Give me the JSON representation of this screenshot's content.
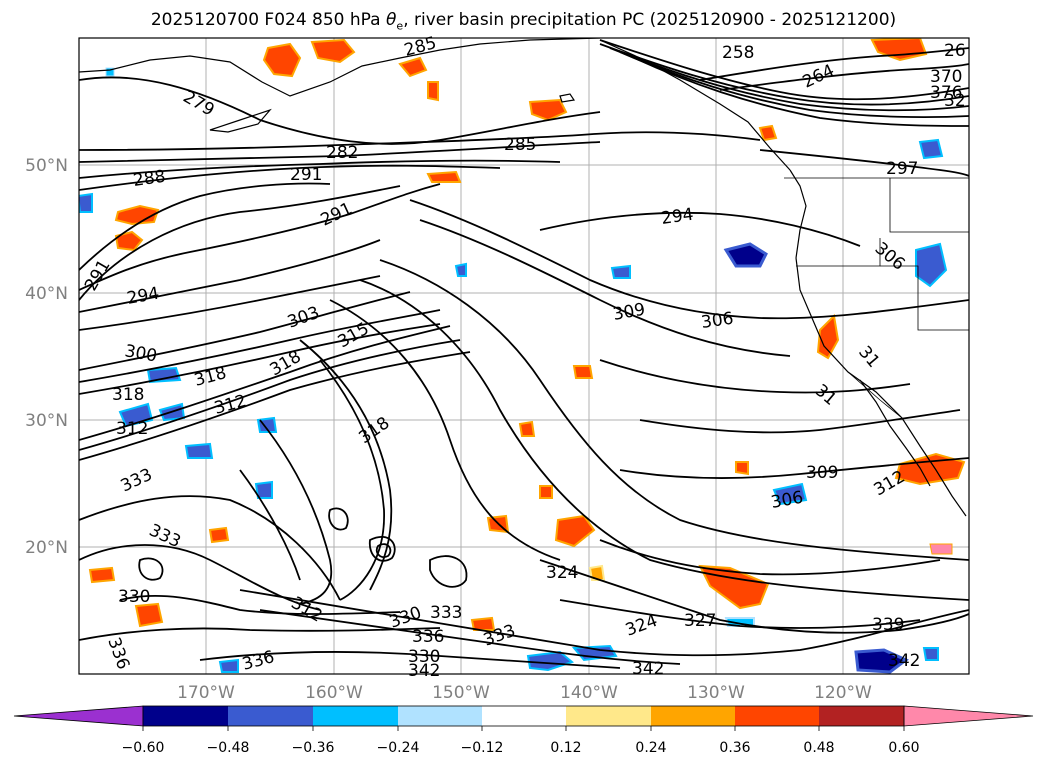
{
  "title_main": "2025120700 F024 850 hPa ",
  "title_theta": "θ",
  "title_sub": "e",
  "title_rest": ", river basin precipitation PC (2025120900 - 2025121200)",
  "lat_labels": [
    "50°N",
    "40°N",
    "30°N",
    "20°N"
  ],
  "lon_labels": [
    "170°W",
    "160°W",
    "150°W",
    "140°W",
    "130°W",
    "120°W"
  ],
  "colorbar": {
    "ticks": [
      "−0.60",
      "−0.48",
      "−0.36",
      "−0.24",
      "−0.12",
      "0.12",
      "0.24",
      "0.36",
      "0.48",
      "0.60"
    ],
    "colors": [
      "#9b30d0",
      "#00008b",
      "#3a5bd0",
      "#00bfff",
      "#b0e2ff",
      "#ffffff",
      "#ffe88a",
      "#ffa500",
      "#ff4500",
      "#b22222",
      "#ff88aa"
    ]
  },
  "contour_labels": [
    "279",
    "282",
    "285",
    "288",
    "291",
    "291",
    "291",
    "294",
    "294",
    "300",
    "303",
    "315",
    "318",
    "318",
    "318",
    "312",
    "312",
    "318",
    "309",
    "306",
    "306",
    "309",
    "312",
    "333",
    "333",
    "330",
    "336",
    "330",
    "333",
    "336",
    "333",
    "330",
    "342",
    "336",
    "342",
    "324",
    "324",
    "327",
    "339",
    "342",
    "258",
    "264",
    "285",
    "297",
    "306",
    "26",
    "370",
    "376",
    "32",
    "31",
    "31",
    "312"
  ]
}
